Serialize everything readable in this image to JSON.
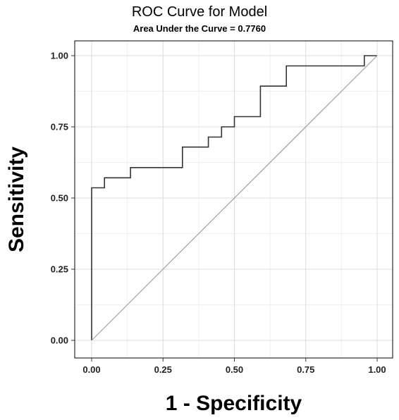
{
  "chart_data": {
    "type": "line",
    "title": "ROC Curve for Model",
    "subtitle": "Area Under the Curve = 0.7760",
    "xlabel": "1 - Specificity",
    "ylabel": "Sensitivity",
    "xlim": [
      0,
      1
    ],
    "ylim": [
      0,
      1
    ],
    "xticks": [
      "0.00",
      "0.25",
      "0.50",
      "0.75",
      "1.00"
    ],
    "yticks": [
      "0.00",
      "0.25",
      "0.50",
      "0.75",
      "1.00"
    ],
    "grid": true,
    "series": [
      {
        "name": "",
        "style": "step",
        "color": "#333333",
        "x": [
          0,
          0,
          0.045,
          0.045,
          0.136,
          0.136,
          0.318,
          0.318,
          0.409,
          0.409,
          0.455,
          0.455,
          0.5,
          0.5,
          0.591,
          0.591,
          0.682,
          0.682,
          0.955,
          0.955,
          1.0,
          1.0
        ],
        "y": [
          0,
          0.536,
          0.536,
          0.571,
          0.571,
          0.607,
          0.607,
          0.679,
          0.679,
          0.714,
          0.714,
          0.75,
          0.75,
          0.786,
          0.786,
          0.893,
          0.893,
          0.964,
          0.964,
          1.0,
          1.0,
          1.0
        ]
      },
      {
        "name": "",
        "style": "reference",
        "color": "#a0a0a0",
        "x": [
          0,
          1
        ],
        "y": [
          0,
          1
        ]
      }
    ]
  }
}
